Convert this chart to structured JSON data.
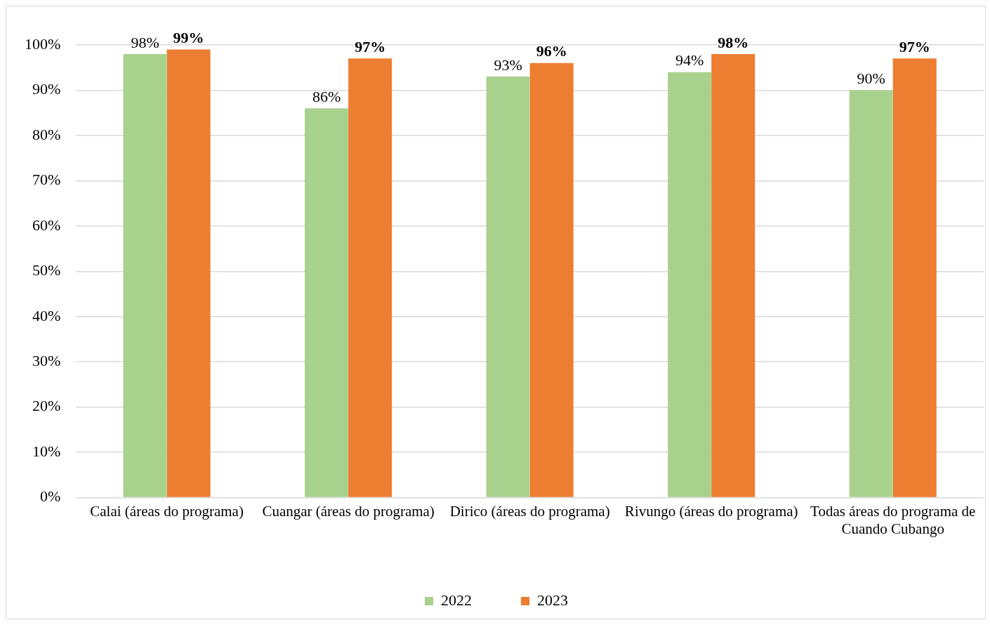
{
  "chart_data": {
    "type": "bar",
    "categories": [
      "Calai (áreas do programa)",
      "Cuangar (áreas do programa)",
      "Dirico (áreas do programa)",
      "Rivungo (áreas do programa)",
      "Todas áreas do programa de Cuando Cubango"
    ],
    "series": [
      {
        "name": "2022",
        "color": "#a9d18e",
        "values": [
          98,
          86,
          93,
          94,
          90
        ],
        "value_labels": [
          "98%",
          "86%",
          "93%",
          "94%",
          "90%"
        ]
      },
      {
        "name": "2023",
        "color": "#ed7d31",
        "values": [
          99,
          97,
          96,
          98,
          97
        ],
        "value_labels": [
          "99%",
          "97%",
          "96%",
          "98%",
          "97%"
        ]
      }
    ],
    "ylim": [
      0,
      100
    ],
    "yticks": [
      {
        "value": 0,
        "label": "0%"
      },
      {
        "value": 10,
        "label": "10%"
      },
      {
        "value": 20,
        "label": "20%"
      },
      {
        "value": 30,
        "label": "30%"
      },
      {
        "value": 40,
        "label": "40%"
      },
      {
        "value": 50,
        "label": "50%"
      },
      {
        "value": 60,
        "label": "60%"
      },
      {
        "value": 70,
        "label": "70%"
      },
      {
        "value": 80,
        "label": "80%"
      },
      {
        "value": 90,
        "label": "90%"
      },
      {
        "value": 100,
        "label": "100%"
      }
    ],
    "grid": "y",
    "legend": "bottom"
  }
}
